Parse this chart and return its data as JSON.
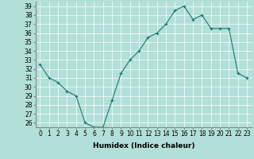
{
  "x": [
    0,
    1,
    2,
    3,
    4,
    5,
    6,
    7,
    8,
    9,
    10,
    11,
    12,
    13,
    14,
    15,
    16,
    17,
    18,
    19,
    20,
    21,
    22,
    23
  ],
  "y": [
    32.5,
    31.0,
    30.5,
    29.5,
    29.0,
    26.0,
    25.5,
    25.5,
    28.5,
    31.5,
    33.0,
    34.0,
    35.5,
    36.0,
    37.0,
    38.5,
    39.0,
    37.5,
    38.0,
    36.5,
    36.5,
    36.5,
    31.5,
    31.0
  ],
  "line_color": "#1a7a6e",
  "marker": "+",
  "bg_color": "#b2e0d8",
  "grid_color": "#ffffff",
  "xlabel": "Humidex (Indice chaleur)",
  "ylim": [
    25.5,
    39.5
  ],
  "xlim": [
    -0.5,
    23.5
  ],
  "yticks": [
    26,
    27,
    28,
    29,
    30,
    31,
    32,
    33,
    34,
    35,
    36,
    37,
    38,
    39
  ],
  "xticks": [
    0,
    1,
    2,
    3,
    4,
    5,
    6,
    7,
    8,
    9,
    10,
    11,
    12,
    13,
    14,
    15,
    16,
    17,
    18,
    19,
    20,
    21,
    22,
    23
  ],
  "xtick_labels": [
    "0",
    "1",
    "2",
    "3",
    "4",
    "5",
    "6",
    "7",
    "8",
    "9",
    "10",
    "11",
    "12",
    "13",
    "14",
    "15",
    "16",
    "17",
    "18",
    "19",
    "20",
    "21",
    "22",
    "23"
  ],
  "label_fontsize": 6.5,
  "tick_fontsize": 5.5
}
